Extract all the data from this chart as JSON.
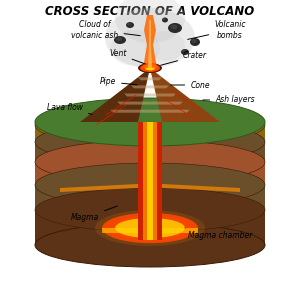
{
  "title": "CROSS SECTION OF A VOLCANO",
  "title_fontsize": 8.5,
  "title_style": "italic",
  "title_weight": "bold",
  "labels": {
    "cloud_of_volcanic_ash": "Cloud of\nvolcanic ash",
    "volcanic_bombs": "Volcanic\nbombs",
    "vent": "Vent",
    "crater": "Crater",
    "pipe": "Pipe",
    "cone": "Cone",
    "lava_flow": "Lava flow",
    "ash_layers": "Ash layers",
    "magma": "Magma",
    "magma_chamber": "Magma chamber"
  },
  "colors": {
    "background": "#ffffff",
    "earth_top": "#4a7c2f",
    "earth_layer1": "#8B6914",
    "earth_layer2": "#6B4F2A",
    "earth_layer3": "#A0522D",
    "earth_layer4": "#7a4520",
    "earth_deep": "#5c3317",
    "magma_bright": "#FF4500",
    "magma_glow": "#FF8C00",
    "magma_yellow": "#FFD700",
    "lava_red": "#CC2200",
    "cone_rock": "#8B4513",
    "cone_dark": "#5a2d0c",
    "ash_gray": "#696969",
    "eruption_orange": "#FF6600",
    "eruption_light": "#FFB347",
    "smoke_gray": "#C0C0C0",
    "grass_green": "#5a9e2f",
    "text_color": "#000000",
    "arrow_color": "#000000"
  }
}
